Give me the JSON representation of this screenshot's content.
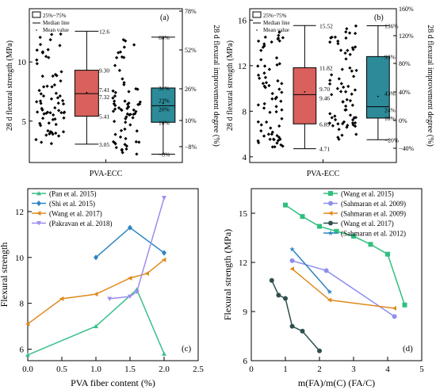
{
  "chart_data": [
    {
      "type": "box",
      "panel_label": "(a)",
      "ylabel": "28 d flexural strength (MPa)",
      "y2label": "28 d flexural improvement degree (%)",
      "xlabel": "PVA-ECC",
      "ylim": [
        1.5,
        14.5
      ],
      "yticks": [
        5,
        10
      ],
      "y2ticks": [
        "−8%",
        "10%",
        "26%",
        "52%",
        "78%"
      ],
      "legend": {
        "box": "25%~75%",
        "median": "Median line",
        "mean": "Mean value"
      },
      "boxes": [
        {
          "name": "strength",
          "color": "#d9605c",
          "q1": 5.41,
          "median": 7.32,
          "mean": 7.41,
          "q3": 9.3,
          "min": 3.05,
          "max": 12.6,
          "labels": [
            "12.6",
            "9.30",
            "7.41",
            "7.32",
            "5.41",
            "3.05"
          ]
        },
        {
          "name": "improvement",
          "color": "#2d8b99",
          "q1": 4.9,
          "median": 6.3,
          "mean": 6.5,
          "q3": 7.8,
          "min": 2.2,
          "max": 12.1,
          "labels": [
            "60%",
            "31%",
            "23%",
            "20%",
            "10%",
            "−8%"
          ]
        }
      ]
    },
    {
      "type": "box",
      "panel_label": "(b)",
      "ylabel": "28 d flexural strength (MPa)",
      "y2label": "28 d flexural improvement degree (%)",
      "xlabel": "PVA-ECC",
      "ylim": [
        3.5,
        17
      ],
      "yticks": [
        4,
        8,
        12,
        16
      ],
      "y2ticks": [
        "−40%",
        "0%",
        "40%",
        "80%",
        "120%",
        "160%"
      ],
      "legend": {
        "box": "25%~75%",
        "median": "Median line",
        "mean": "Mean value"
      },
      "boxes": [
        {
          "name": "strength",
          "color": "#d9605c",
          "q1": 6.89,
          "median": 9.46,
          "mean": 9.7,
          "q3": 11.82,
          "min": 4.71,
          "max": 15.52,
          "labels": [
            "15.52",
            "11.82",
            "9.70",
            "9.46",
            "6.89",
            "4.71"
          ]
        },
        {
          "name": "improvement",
          "color": "#2d8b99",
          "q1": 7.4,
          "median": 8.4,
          "mean": 9.3,
          "q3": 12.8,
          "min": 5.5,
          "max": 15.5,
          "labels": [
            "136%",
            "93%",
            "43%",
            "24%",
            "10%",
            "−20%"
          ]
        }
      ]
    },
    {
      "type": "line",
      "panel_label": "(c)",
      "xlabel": "PVA fiber content (%)",
      "ylabel": "Flexural strength",
      "xlim": [
        0,
        2.5
      ],
      "ylim": [
        5.5,
        13
      ],
      "xticks": [
        "0.0",
        "0.5",
        "1.0",
        "1.5",
        "2.0",
        "2.5"
      ],
      "yticks": [
        6,
        8,
        10,
        12
      ],
      "series": [
        {
          "name": "(Pan et al. 2015)",
          "color": "#3cbf8a",
          "marker": "triangle-up",
          "x": [
            0,
            1.0,
            1.6,
            2.0
          ],
          "y": [
            5.75,
            7.0,
            8.6,
            5.8
          ]
        },
        {
          "name": "(Shi et al. 2015)",
          "color": "#2e86c1",
          "marker": "diamond",
          "x": [
            1.0,
            1.5,
            2.0
          ],
          "y": [
            10.0,
            11.3,
            10.2
          ]
        },
        {
          "name": "(Wang et al. 2017)",
          "color": "#e08a1e",
          "marker": "triangle-left",
          "x": [
            0,
            0.5,
            1.0,
            1.5,
            1.75,
            2.0
          ],
          "y": [
            7.1,
            8.2,
            8.4,
            9.1,
            9.3,
            9.9
          ]
        },
        {
          "name": "(Pakravan et al. 2018)",
          "color": "#9b8cf0",
          "marker": "triangle-down",
          "x": [
            1.2,
            1.5,
            1.6,
            2.0
          ],
          "y": [
            8.2,
            8.3,
            8.5,
            12.6
          ]
        }
      ]
    },
    {
      "type": "line",
      "panel_label": "(d)",
      "xlabel": "m(FA)/m(C) (FA/C)",
      "ylabel": "Flexural strength (MPa)",
      "xlim": [
        0,
        5
      ],
      "ylim": [
        6,
        16.5
      ],
      "xticks": [
        "0",
        "1",
        "2",
        "3",
        "4",
        "5"
      ],
      "yticks": [
        6,
        9,
        12,
        15
      ],
      "series": [
        {
          "name": "(Wang et al. 2015)",
          "color": "#2fbf7f",
          "marker": "square",
          "x": [
            1.0,
            1.5,
            2.0,
            2.5,
            3.0,
            3.5,
            4.0,
            4.5
          ],
          "y": [
            15.5,
            14.8,
            14.2,
            13.9,
            13.6,
            13.1,
            12.5,
            9.4
          ]
        },
        {
          "name": "(Sahmaran et al. 2009)",
          "color": "#8e8ef0",
          "marker": "circle",
          "x": [
            1.2,
            2.2,
            4.2
          ],
          "y": [
            12.1,
            11.5,
            8.7
          ]
        },
        {
          "name": "(Sahmaran et al. 2009)",
          "color": "#e08a1e",
          "marker": "triangle-left",
          "x": [
            1.2,
            2.3,
            4.2
          ],
          "y": [
            11.6,
            9.7,
            9.2
          ]
        },
        {
          "name": "(Wang et al. 2017)",
          "color": "#2f4f4f",
          "marker": "circle",
          "x": [
            0.6,
            0.8,
            1.0,
            1.2,
            1.5,
            2.0
          ],
          "y": [
            10.9,
            10.0,
            9.8,
            8.1,
            7.8,
            6.6
          ]
        },
        {
          "name": "(Sahmaran et al. 2012)",
          "color": "#2e86c1",
          "marker": "star",
          "x": [
            1.2,
            2.3
          ],
          "y": [
            12.8,
            10.2
          ]
        }
      ]
    }
  ]
}
